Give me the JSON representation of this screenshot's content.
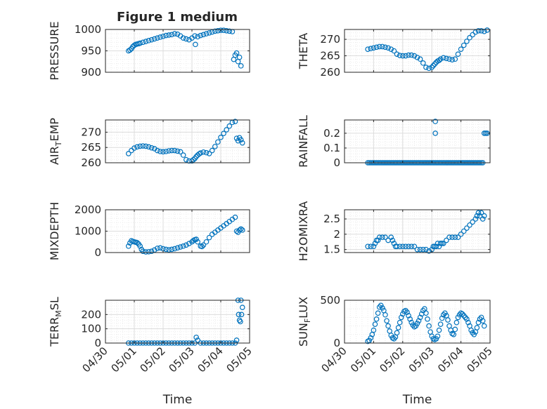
{
  "figure": {
    "title": "Figure 1 medium"
  },
  "chart_data": [
    {
      "type": "scatter",
      "title": "Figure 1 medium",
      "ylabel": "PRESSURE",
      "ylim": [
        900,
        1000
      ],
      "yticks": [
        900,
        950,
        1000
      ],
      "xlim": [
        0,
        5
      ],
      "xticks": [
        "04/30",
        "05/01",
        "05/02",
        "05/03",
        "05/04",
        "05/05"
      ],
      "xticklabels_shown": false,
      "grid": true,
      "series": [
        {
          "x": [
            0.8,
            0.85,
            0.9,
            0.95,
            1.0,
            1.05,
            1.1,
            1.15,
            1.2,
            1.3,
            1.4,
            1.5,
            1.6,
            1.7,
            1.8,
            1.9,
            2.0,
            2.1,
            2.2,
            2.3,
            2.4,
            2.5,
            2.6,
            2.7,
            2.8,
            2.9,
            3.0,
            3.1,
            3.2,
            3.3,
            3.4,
            3.5,
            3.6,
            3.7,
            3.8,
            3.9,
            4.0,
            4.1,
            4.2,
            4.3,
            4.4,
            4.45,
            4.5,
            4.55,
            4.6,
            4.65,
            4.7,
            3.12
          ],
          "y": [
            950,
            952,
            955,
            960,
            963,
            965,
            966,
            967,
            968,
            970,
            972,
            974,
            976,
            978,
            980,
            982,
            984,
            986,
            987,
            988,
            990,
            989,
            985,
            980,
            978,
            976,
            980,
            985,
            983,
            986,
            988,
            990,
            992,
            994,
            996,
            997,
            998,
            998,
            997,
            996,
            995,
            930,
            940,
            945,
            925,
            935,
            915,
            965
          ]
        }
      ]
    },
    {
      "type": "scatter",
      "ylabel": "THETA",
      "ylim": [
        260,
        273
      ],
      "yticks": [
        260,
        265,
        270
      ],
      "xlim": [
        0,
        5
      ],
      "xticks": [
        "04/30",
        "05/01",
        "05/02",
        "05/03",
        "05/04",
        "05/05"
      ],
      "xticklabels_shown": false,
      "grid": true,
      "series": [
        {
          "x": [
            0.8,
            0.9,
            1.0,
            1.1,
            1.2,
            1.3,
            1.4,
            1.5,
            1.6,
            1.7,
            1.8,
            1.9,
            2.0,
            2.1,
            2.2,
            2.3,
            2.4,
            2.5,
            2.6,
            2.7,
            2.8,
            2.9,
            3.0,
            3.05,
            3.1,
            3.15,
            3.2,
            3.25,
            3.3,
            3.4,
            3.5,
            3.6,
            3.7,
            3.8,
            3.9,
            4.0,
            4.1,
            4.2,
            4.3,
            4.4,
            4.5,
            4.6,
            4.7,
            4.8,
            4.9
          ],
          "y": [
            267,
            267.2,
            267.4,
            267.6,
            267.8,
            267.8,
            267.6,
            267.4,
            267,
            266.5,
            265.5,
            265.1,
            265,
            265,
            265.2,
            265.2,
            265,
            264.5,
            264,
            262.8,
            261.5,
            261.2,
            261.5,
            262,
            262.5,
            263,
            263.4,
            263.6,
            264,
            264.4,
            264.2,
            264,
            263.8,
            264,
            265.5,
            267,
            268.2,
            269.4,
            270.5,
            271.4,
            272.2,
            272.6,
            272.6,
            272.4,
            272.8
          ]
        }
      ]
    },
    {
      "type": "scatter",
      "ylabel": "AIR_TEMP",
      "ylim": [
        260,
        274
      ],
      "yticks": [
        260,
        265,
        270
      ],
      "xlim": [
        0,
        5
      ],
      "xticks": [
        "04/30",
        "05/01",
        "05/02",
        "05/03",
        "05/04",
        "05/05"
      ],
      "xticklabels_shown": false,
      "grid": true,
      "series": [
        {
          "x": [
            0.8,
            0.9,
            1.0,
            1.1,
            1.2,
            1.3,
            1.4,
            1.5,
            1.6,
            1.7,
            1.8,
            1.9,
            2.0,
            2.1,
            2.2,
            2.3,
            2.4,
            2.5,
            2.6,
            2.7,
            2.8,
            2.9,
            3.0,
            3.05,
            3.1,
            3.15,
            3.2,
            3.25,
            3.3,
            3.4,
            3.5,
            3.6,
            3.7,
            3.8,
            3.9,
            4.0,
            4.1,
            4.2,
            4.3,
            4.4,
            4.5,
            4.55,
            4.6,
            4.65,
            4.7,
            4.75
          ],
          "y": [
            263,
            264,
            264.8,
            265.2,
            265.4,
            265.5,
            265.4,
            265.2,
            264.9,
            264.6,
            264,
            263.7,
            263.6,
            263.7,
            263.9,
            264,
            264,
            263.8,
            263.6,
            262.5,
            261,
            260.6,
            260.6,
            261,
            261.4,
            262,
            262.5,
            262.9,
            263.2,
            263.5,
            263.3,
            263,
            264,
            265.3,
            266.8,
            268.3,
            269.6,
            270.8,
            272,
            273.2,
            273.5,
            268,
            267.2,
            268.2,
            267.5,
            266.5
          ]
        }
      ]
    },
    {
      "type": "scatter",
      "ylabel": "RAINFALL",
      "ylim": [
        0,
        0.29
      ],
      "yticks": [
        0,
        0.1,
        0.2
      ],
      "xlim": [
        0,
        5
      ],
      "xticks": [
        "04/30",
        "05/01",
        "05/02",
        "05/03",
        "05/04",
        "05/05"
      ],
      "xticklabels_shown": false,
      "grid": true,
      "series": [
        {
          "x": [
            0.8,
            0.85,
            0.9,
            0.95,
            1.0,
            1.05,
            1.1,
            1.15,
            1.2,
            1.25,
            1.3,
            1.35,
            1.4,
            1.45,
            1.5,
            1.55,
            1.6,
            1.65,
            1.7,
            1.75,
            1.8,
            1.85,
            1.9,
            1.95,
            2.0,
            2.05,
            2.1,
            2.15,
            2.2,
            2.25,
            2.3,
            2.35,
            2.4,
            2.45,
            2.5,
            2.55,
            2.6,
            2.65,
            2.7,
            2.75,
            2.8,
            2.85,
            2.9,
            2.95,
            3.0,
            3.05,
            3.1,
            3.15,
            3.2,
            3.25,
            3.3,
            3.35,
            3.4,
            3.45,
            3.5,
            3.55,
            3.6,
            3.65,
            3.7,
            3.75,
            3.8,
            3.85,
            3.9,
            3.95,
            4.0,
            4.05,
            4.1,
            4.15,
            4.2,
            4.25,
            4.3,
            4.35,
            4.4,
            4.45,
            4.5,
            4.55,
            4.6,
            4.65,
            4.7,
            4.75,
            3.12,
            3.12,
            4.8,
            4.85,
            4.9
          ],
          "y": [
            0,
            0,
            0,
            0,
            0,
            0,
            0,
            0,
            0,
            0,
            0,
            0,
            0,
            0,
            0,
            0,
            0,
            0,
            0,
            0,
            0,
            0,
            0,
            0,
            0,
            0,
            0,
            0,
            0,
            0,
            0,
            0,
            0,
            0,
            0,
            0,
            0,
            0,
            0,
            0,
            0,
            0,
            0,
            0,
            0,
            0,
            0,
            0,
            0,
            0,
            0,
            0,
            0,
            0,
            0,
            0,
            0,
            0,
            0,
            0,
            0,
            0,
            0,
            0,
            0,
            0,
            0,
            0,
            0,
            0,
            0,
            0,
            0,
            0,
            0,
            0,
            0,
            0,
            0,
            0,
            0.28,
            0.2,
            0.2,
            0.2,
            0.2
          ]
        }
      ]
    },
    {
      "type": "scatter",
      "ylabel": "MIXDEPTH",
      "ylim": [
        0,
        2000
      ],
      "yticks": [
        0,
        1000,
        2000
      ],
      "xlim": [
        0,
        5
      ],
      "xticks": [
        "04/30",
        "05/01",
        "05/02",
        "05/03",
        "05/04",
        "05/05"
      ],
      "xticklabels_shown": false,
      "grid": true,
      "series": [
        {
          "x": [
            0.8,
            0.85,
            0.9,
            0.95,
            1.0,
            1.05,
            1.1,
            1.15,
            1.2,
            1.25,
            1.3,
            1.4,
            1.5,
            1.6,
            1.7,
            1.8,
            1.9,
            2.0,
            2.1,
            2.2,
            2.3,
            2.4,
            2.5,
            2.6,
            2.7,
            2.8,
            2.9,
            3.0,
            3.05,
            3.1,
            3.15,
            3.2,
            3.3,
            3.35,
            3.4,
            3.5,
            3.6,
            3.7,
            3.8,
            3.9,
            4.0,
            4.1,
            4.2,
            4.3,
            4.4,
            4.5,
            4.55,
            4.6,
            4.65,
            4.7,
            4.75
          ],
          "y": [
            300,
            450,
            550,
            520,
            500,
            480,
            460,
            400,
            300,
            150,
            60,
            30,
            40,
            60,
            120,
            200,
            220,
            180,
            150,
            130,
            150,
            180,
            220,
            260,
            300,
            350,
            420,
            500,
            560,
            600,
            620,
            500,
            300,
            280,
            350,
            500,
            700,
            850,
            950,
            1050,
            1150,
            1250,
            1350,
            1450,
            1550,
            1650,
            1000,
            950,
            1050,
            1100,
            1050
          ]
        }
      ]
    },
    {
      "type": "scatter",
      "ylabel": "H2OMIXRA",
      "ylim": [
        1.4,
        2.8
      ],
      "yticks": [
        1.5,
        2,
        2.5
      ],
      "xlim": [
        0,
        5
      ],
      "xticks": [
        "04/30",
        "05/01",
        "05/02",
        "05/03",
        "05/04",
        "05/05"
      ],
      "xticklabels_shown": false,
      "grid": true,
      "series": [
        {
          "x": [
            0.8,
            0.9,
            1.0,
            1.05,
            1.1,
            1.15,
            1.2,
            1.3,
            1.4,
            1.5,
            1.6,
            1.65,
            1.7,
            1.75,
            1.8,
            1.9,
            2.0,
            2.1,
            2.2,
            2.3,
            2.4,
            2.5,
            2.6,
            2.7,
            2.8,
            2.9,
            3.0,
            3.05,
            3.1,
            3.15,
            3.2,
            3.25,
            3.3,
            3.35,
            3.4,
            3.5,
            3.6,
            3.7,
            3.8,
            3.9,
            4.0,
            4.1,
            4.2,
            4.3,
            4.4,
            4.5,
            4.55,
            4.6,
            4.65,
            4.7,
            4.75,
            4.8
          ],
          "y": [
            1.6,
            1.6,
            1.6,
            1.7,
            1.8,
            1.8,
            1.9,
            1.9,
            1.9,
            1.8,
            1.9,
            1.8,
            1.7,
            1.6,
            1.6,
            1.6,
            1.6,
            1.6,
            1.6,
            1.6,
            1.6,
            1.5,
            1.5,
            1.5,
            1.5,
            1.45,
            1.5,
            1.6,
            1.6,
            1.6,
            1.7,
            1.6,
            1.7,
            1.7,
            1.7,
            1.8,
            1.9,
            1.9,
            1.9,
            1.9,
            2.0,
            2.1,
            2.2,
            2.3,
            2.4,
            2.5,
            2.6,
            2.7,
            2.6,
            2.7,
            2.5,
            2.6
          ]
        }
      ]
    },
    {
      "type": "scatter",
      "ylabel": "TERR_MSL",
      "ylim": [
        0,
        300
      ],
      "yticks": [
        0,
        100,
        200
      ],
      "xlim": [
        0,
        5
      ],
      "xticks": [
        "04/30",
        "05/01",
        "05/02",
        "05/03",
        "05/04",
        "05/05"
      ],
      "xticklabels_shown": true,
      "xlabel": "Time",
      "grid": true,
      "series": [
        {
          "x": [
            0.8,
            0.9,
            1.0,
            1.1,
            1.2,
            1.3,
            1.4,
            1.5,
            1.6,
            1.7,
            1.8,
            1.9,
            2.0,
            2.1,
            2.2,
            2.3,
            2.4,
            2.5,
            2.6,
            2.7,
            2.8,
            2.9,
            3.0,
            3.1,
            3.15,
            3.2,
            3.3,
            3.4,
            3.5,
            3.6,
            3.7,
            3.8,
            3.9,
            4.0,
            4.1,
            4.2,
            4.3,
            4.4,
            4.5,
            4.55,
            4.6,
            4.62,
            4.65,
            4.68,
            4.7,
            4.72,
            4.75
          ],
          "y": [
            0,
            0,
            0,
            0,
            0,
            0,
            0,
            0,
            0,
            0,
            0,
            0,
            0,
            0,
            0,
            0,
            0,
            0,
            0,
            0,
            0,
            0,
            0,
            0,
            40,
            20,
            0,
            0,
            0,
            0,
            0,
            0,
            0,
            0,
            0,
            0,
            0,
            0,
            0,
            20,
            300,
            200,
            160,
            150,
            300,
            200,
            250
          ]
        }
      ]
    },
    {
      "type": "scatter",
      "ylabel": "SUN_FLUX",
      "ylim": [
        0,
        500
      ],
      "yticks": [
        0,
        500
      ],
      "xlim": [
        0,
        5
      ],
      "xticks": [
        "04/30",
        "05/01",
        "05/02",
        "05/03",
        "05/04",
        "05/05"
      ],
      "xticklabels_shown": true,
      "xlabel": "Time",
      "grid": true,
      "series": [
        {
          "x": [
            0.8,
            0.85,
            0.9,
            0.95,
            1.0,
            1.05,
            1.1,
            1.15,
            1.2,
            1.25,
            1.3,
            1.35,
            1.4,
            1.45,
            1.5,
            1.55,
            1.6,
            1.65,
            1.7,
            1.75,
            1.8,
            1.85,
            1.9,
            1.95,
            2.0,
            2.05,
            2.1,
            2.15,
            2.2,
            2.25,
            2.3,
            2.35,
            2.4,
            2.45,
            2.5,
            2.55,
            2.6,
            2.65,
            2.7,
            2.75,
            2.8,
            2.85,
            2.9,
            2.95,
            3.0,
            3.05,
            3.1,
            3.15,
            3.2,
            3.25,
            3.3,
            3.35,
            3.4,
            3.45,
            3.5,
            3.55,
            3.6,
            3.65,
            3.7,
            3.75,
            3.8,
            3.85,
            3.9,
            3.95,
            4.0,
            4.05,
            4.1,
            4.15,
            4.2,
            4.25,
            4.3,
            4.35,
            4.4,
            4.45,
            4.5,
            4.55,
            4.6,
            4.65,
            4.7,
            4.75,
            4.8
          ],
          "y": [
            20,
            30,
            60,
            100,
            150,
            220,
            280,
            350,
            420,
            440,
            410,
            380,
            330,
            260,
            200,
            140,
            90,
            60,
            50,
            70,
            120,
            180,
            240,
            300,
            340,
            370,
            380,
            360,
            320,
            280,
            240,
            210,
            190,
            200,
            230,
            260,
            300,
            340,
            380,
            400,
            350,
            280,
            200,
            130,
            80,
            50,
            40,
            50,
            80,
            150,
            220,
            290,
            330,
            350,
            320,
            270,
            200,
            150,
            110,
            100,
            160,
            240,
            300,
            330,
            350,
            340,
            320,
            300,
            280,
            240,
            200,
            150,
            120,
            100,
            130,
            180,
            240,
            280,
            300,
            260,
            200
          ]
        }
      ]
    }
  ]
}
